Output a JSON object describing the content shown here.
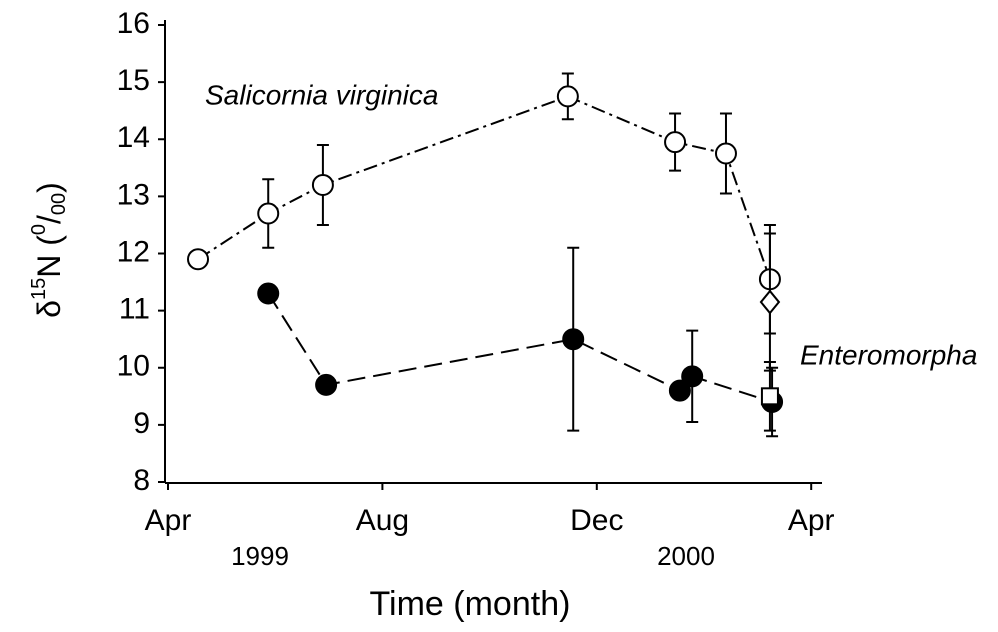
{
  "chart_data": {
    "type": "line",
    "x_label": "Time (month)",
    "y_label": [
      "δ",
      "15",
      "N (",
      "0",
      "/",
      "00",
      ")"
    ],
    "xlim": [
      4,
      16.2
    ],
    "xticks": [
      {
        "value": 4,
        "label": "Apr"
      },
      {
        "value": 8,
        "label": "Aug"
      },
      {
        "value": 12,
        "label": "Dec"
      },
      {
        "value": 16,
        "label": "Apr"
      }
    ],
    "year_labels": [
      "1999",
      "2000"
    ],
    "ylim": [
      8,
      16
    ],
    "yticks": [
      8,
      9,
      10,
      11,
      12,
      13,
      14,
      15,
      16
    ],
    "series": [
      {
        "name": "Salicornia virginica",
        "color": "#000000",
        "marker": "open-circle",
        "dash": "dashdot",
        "x": [
          4.56,
          5.87,
          6.89,
          11.46,
          13.46,
          14.41,
          15.23
        ],
        "values": [
          11.9,
          12.7,
          13.2,
          14.75,
          13.95,
          13.75,
          11.55
        ],
        "errors": [
          null,
          0.6,
          0.7,
          0.4,
          0.5,
          0.7,
          0.95
        ]
      },
      {
        "name": "Enteromorpha",
        "color": "#000000",
        "marker": "filled-circle",
        "dash": "dash",
        "x": [
          5.87,
          6.95,
          11.56,
          13.55,
          13.78,
          15.27
        ],
        "values": [
          11.3,
          9.7,
          10.5,
          9.6,
          9.85,
          9.4
        ],
        "errors": [
          null,
          null,
          1.6,
          null,
          0.8,
          0.6
        ]
      },
      {
        "color": "#000000",
        "marker": "open-diamond",
        "dash": "none",
        "x": [
          15.23
        ],
        "values": [
          11.15
        ],
        "errors": [
          1.2
        ]
      },
      {
        "color": "#000000",
        "marker": "open-square",
        "dash": "none",
        "x": [
          15.23
        ],
        "values": [
          9.5
        ],
        "errors": [
          0.6
        ]
      }
    ]
  }
}
